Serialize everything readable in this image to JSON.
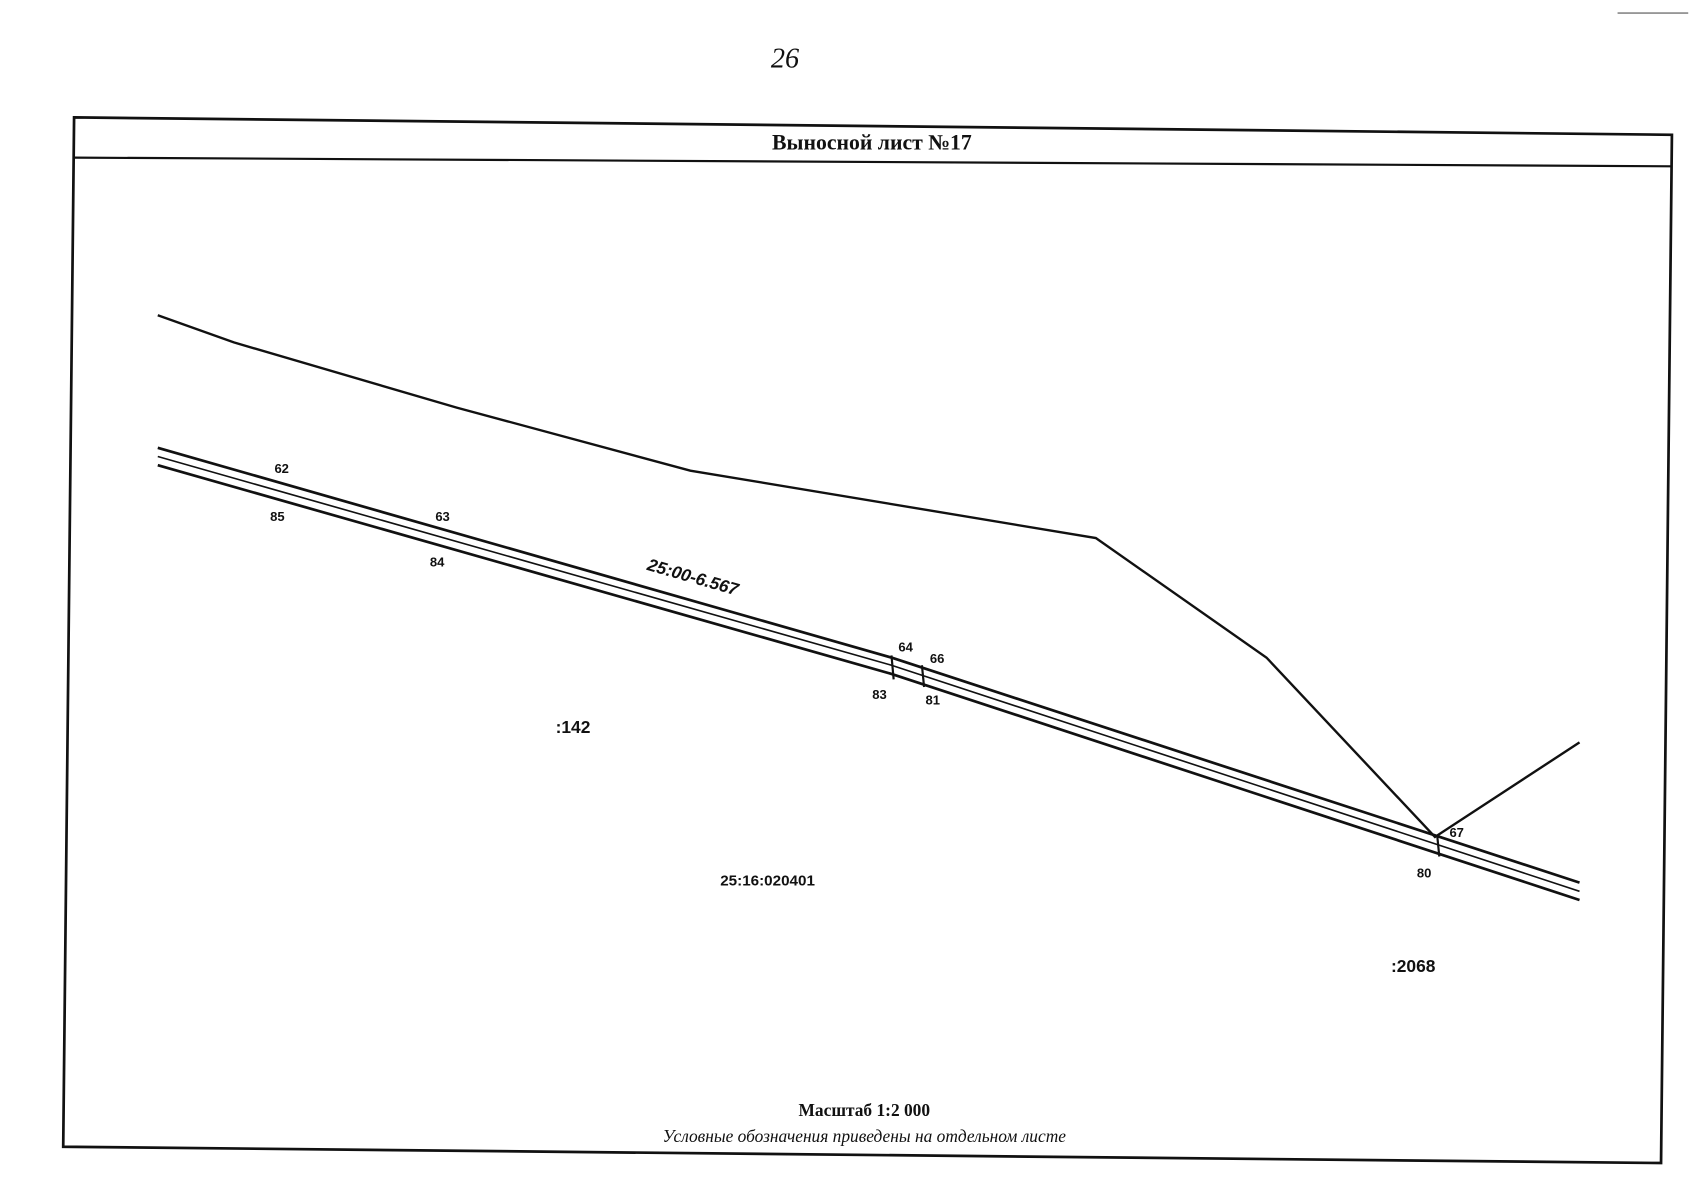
{
  "page_number": "26",
  "sheet": {
    "title": "Выносной лист №17",
    "map": {
      "zone": "25:00-6.567",
      "parcels": [
        ":142",
        "25:16:020401",
        ":2068"
      ],
      "points": [
        "62",
        "85",
        "63",
        "84",
        "64",
        "66",
        "83",
        "81",
        "67",
        "80"
      ]
    },
    "footer": {
      "scale": "Масштаб 1:2 000",
      "note": "Условные обозначения приведены на отдельном листе"
    }
  }
}
